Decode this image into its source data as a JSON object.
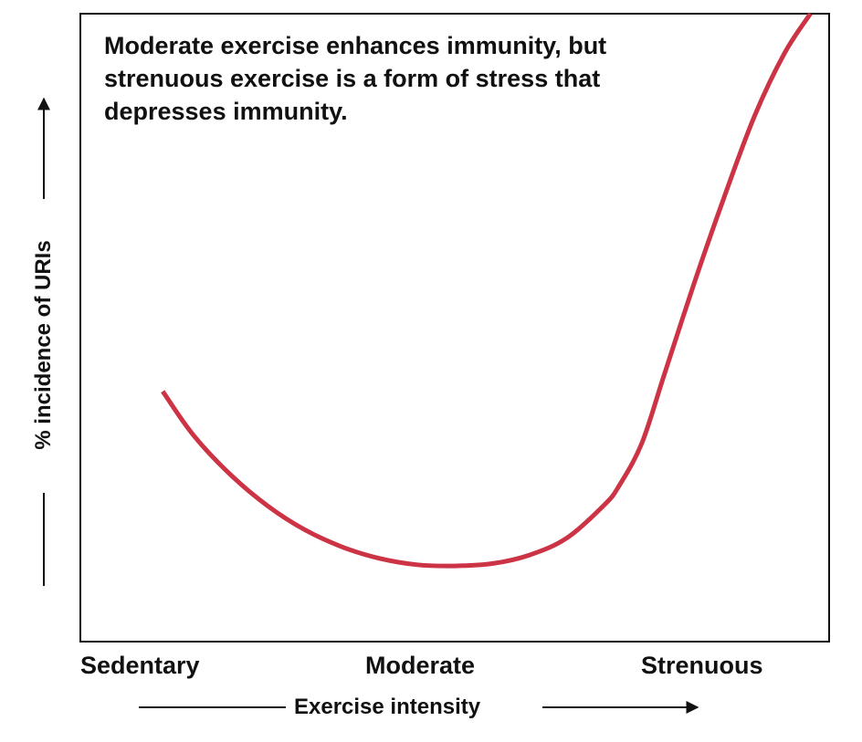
{
  "chart_data": {
    "type": "line",
    "title": "",
    "annotation": [
      "Moderate exercise enhances immunity, but",
      "strenuous exercise is a form of stress that",
      "depresses immunity."
    ],
    "xlabel": "Exercise intensity",
    "ylabel": "% incidence of URIs",
    "categories": [
      "Sedentary",
      "Moderate",
      "Strenuous"
    ],
    "xlim": [
      0,
      100
    ],
    "ylim": [
      0,
      100
    ],
    "grid": false,
    "series": [
      {
        "name": "URI incidence",
        "color": "#cc3344",
        "x": [
          11,
          15,
          20,
          25,
          30,
          35,
          40,
          45,
          50,
          55,
          60,
          65,
          70,
          72,
          75,
          78,
          82,
          86,
          90,
          94,
          97.5
        ],
        "y": [
          34,
          26.5,
          19.5,
          14,
          9.8,
          6.8,
          4.8,
          3.7,
          3.5,
          3.9,
          5.4,
          8.4,
          14.2,
          17.6,
          25,
          37,
          53,
          68,
          82,
          93,
          100
        ]
      }
    ]
  }
}
